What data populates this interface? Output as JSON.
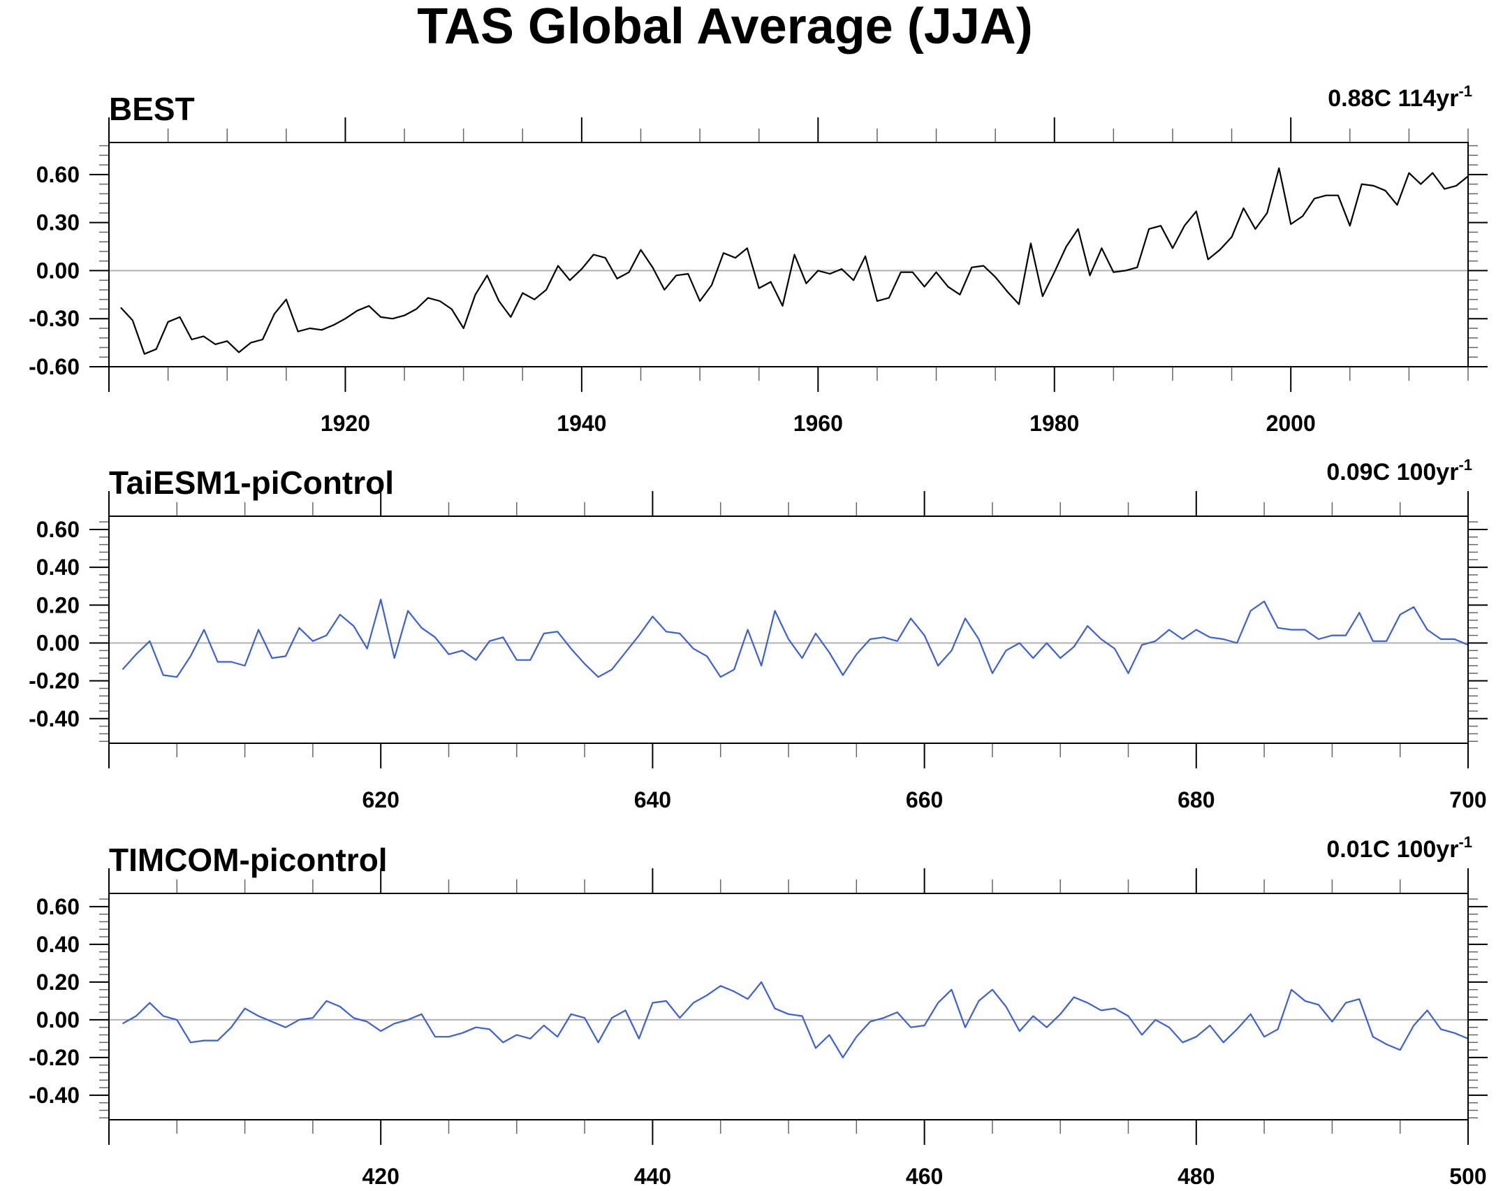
{
  "figure": {
    "title": "TAS Global Average (JJA)"
  },
  "chart_data": [
    {
      "type": "line",
      "title": "BEST",
      "trend": {
        "value": "0.88C 114yr",
        "superscript": "-1"
      },
      "xlabel": "",
      "ylabel": "",
      "xlim": [
        1900,
        2015
      ],
      "ylim": [
        -0.6,
        0.8
      ],
      "xticks": [
        1920,
        1940,
        1960,
        1980,
        2000
      ],
      "yticks": [
        -0.6,
        -0.3,
        0.0,
        0.3,
        0.6
      ],
      "ytick_labels": [
        "-0.60",
        "-0.30",
        "0.00",
        "0.30",
        "0.60"
      ],
      "zero_line": true,
      "grid": false,
      "series": [
        {
          "color": "#000000",
          "x_start": 1901,
          "values": [
            -0.23,
            -0.31,
            -0.52,
            -0.49,
            -0.32,
            -0.29,
            -0.43,
            -0.41,
            -0.46,
            -0.44,
            -0.51,
            -0.45,
            -0.43,
            -0.27,
            -0.18,
            -0.38,
            -0.36,
            -0.37,
            -0.34,
            -0.3,
            -0.25,
            -0.22,
            -0.29,
            -0.3,
            -0.28,
            -0.24,
            -0.17,
            -0.19,
            -0.24,
            -0.36,
            -0.15,
            -0.03,
            -0.19,
            -0.29,
            -0.14,
            -0.18,
            -0.12,
            0.03,
            -0.06,
            0.01,
            0.1,
            0.08,
            -0.05,
            -0.01,
            0.13,
            0.02,
            -0.12,
            -0.03,
            -0.02,
            -0.19,
            -0.09,
            0.11,
            0.08,
            0.14,
            -0.11,
            -0.07,
            -0.22,
            0.1,
            -0.08,
            0.0,
            -0.02,
            0.01,
            -0.06,
            0.09,
            -0.19,
            -0.17,
            -0.01,
            -0.01,
            -0.1,
            -0.01,
            -0.1,
            -0.15,
            0.02,
            0.03,
            -0.04,
            -0.13,
            -0.21,
            0.17,
            -0.16,
            -0.01,
            0.15,
            0.26,
            -0.03,
            0.14,
            -0.01,
            0.0,
            0.02,
            0.26,
            0.28,
            0.14,
            0.28,
            0.37,
            0.07,
            0.13,
            0.21,
            0.39,
            0.26,
            0.36,
            0.64,
            0.29,
            0.34,
            0.45,
            0.47,
            0.47,
            0.28,
            0.54,
            0.53,
            0.5,
            0.41,
            0.61,
            0.54,
            0.61,
            0.51,
            0.53,
            0.59
          ]
        }
      ]
    },
    {
      "type": "line",
      "title": "TaiESM1-piControl",
      "trend": {
        "value": "0.09C 100yr",
        "superscript": "-1"
      },
      "xlabel": "",
      "ylabel": "",
      "xlim": [
        600,
        700
      ],
      "ylim": [
        -0.53,
        0.67
      ],
      "xticks": [
        620,
        640,
        660,
        680,
        700
      ],
      "yticks": [
        -0.4,
        -0.2,
        0.0,
        0.2,
        0.4,
        0.6
      ],
      "ytick_labels": [
        "-0.40",
        "-0.20",
        "0.00",
        "0.20",
        "0.40",
        "0.60"
      ],
      "zero_line": true,
      "grid": false,
      "series": [
        {
          "color": "#3b5fd6",
          "x_start": 601,
          "values": [
            -0.14,
            -0.06,
            0.01,
            -0.17,
            -0.18,
            -0.07,
            0.07,
            -0.1,
            -0.1,
            -0.12,
            0.07,
            -0.08,
            -0.07,
            0.08,
            0.01,
            0.04,
            0.15,
            0.09,
            -0.03,
            0.23,
            -0.08,
            0.17,
            0.08,
            0.03,
            -0.06,
            -0.04,
            -0.09,
            0.01,
            0.03,
            -0.09,
            -0.09,
            0.05,
            0.06,
            -0.03,
            -0.11,
            -0.18,
            -0.14,
            -0.05,
            0.04,
            0.14,
            0.06,
            0.05,
            -0.03,
            -0.07,
            -0.18,
            -0.14,
            0.07,
            -0.12,
            0.17,
            0.02,
            -0.08,
            0.05,
            -0.05,
            -0.17,
            -0.06,
            0.02,
            0.03,
            0.01,
            0.13,
            0.04,
            -0.12,
            -0.04,
            0.13,
            0.02,
            -0.16,
            -0.04,
            0.0,
            -0.08,
            0.0,
            -0.08,
            -0.02,
            0.09,
            0.02,
            -0.03,
            -0.16,
            -0.01,
            0.01,
            0.07,
            0.02,
            0.07,
            0.03,
            0.02,
            0.0,
            0.17,
            0.22,
            0.08,
            0.07,
            0.07,
            0.02,
            0.04,
            0.04,
            0.16,
            0.01,
            0.01,
            0.15,
            0.19,
            0.07,
            0.02,
            0.02,
            -0.01
          ]
        }
      ]
    },
    {
      "type": "line",
      "title": "TIMCOM-picontrol",
      "trend": {
        "value": "0.01C 100yr",
        "superscript": "-1"
      },
      "xlabel": "",
      "ylabel": "",
      "xlim": [
        400,
        500
      ],
      "ylim": [
        -0.53,
        0.67
      ],
      "xticks": [
        420,
        440,
        460,
        480,
        500
      ],
      "yticks": [
        -0.4,
        -0.2,
        0.0,
        0.2,
        0.4,
        0.6
      ],
      "ytick_labels": [
        "-0.40",
        "-0.20",
        "0.00",
        "0.20",
        "0.40",
        "0.60"
      ],
      "zero_line": true,
      "grid": false,
      "series": [
        {
          "color": "#3b5fd6",
          "x_start": 401,
          "values": [
            -0.02,
            0.02,
            0.09,
            0.02,
            0.0,
            -0.12,
            -0.11,
            -0.11,
            -0.04,
            0.06,
            0.02,
            -0.01,
            -0.04,
            0.0,
            0.01,
            0.1,
            0.07,
            0.01,
            -0.01,
            -0.06,
            -0.02,
            0.0,
            0.03,
            -0.09,
            -0.09,
            -0.07,
            -0.04,
            -0.05,
            -0.12,
            -0.08,
            -0.1,
            -0.03,
            -0.09,
            0.03,
            0.01,
            -0.12,
            0.01,
            0.05,
            -0.1,
            0.09,
            0.1,
            0.01,
            0.09,
            0.13,
            0.18,
            0.15,
            0.11,
            0.2,
            0.06,
            0.03,
            0.02,
            -0.15,
            -0.08,
            -0.2,
            -0.09,
            -0.01,
            0.01,
            0.04,
            -0.04,
            -0.03,
            0.09,
            0.16,
            -0.04,
            0.1,
            0.16,
            0.07,
            -0.06,
            0.02,
            -0.04,
            0.03,
            0.12,
            0.09,
            0.05,
            0.06,
            0.02,
            -0.08,
            0.0,
            -0.04,
            -0.12,
            -0.09,
            -0.03,
            -0.12,
            -0.05,
            0.03,
            -0.09,
            -0.05,
            0.16,
            0.1,
            0.08,
            -0.01,
            0.09,
            0.11,
            -0.09,
            -0.13,
            -0.16,
            -0.03,
            0.05,
            -0.05,
            -0.07,
            -0.1
          ]
        }
      ]
    }
  ]
}
